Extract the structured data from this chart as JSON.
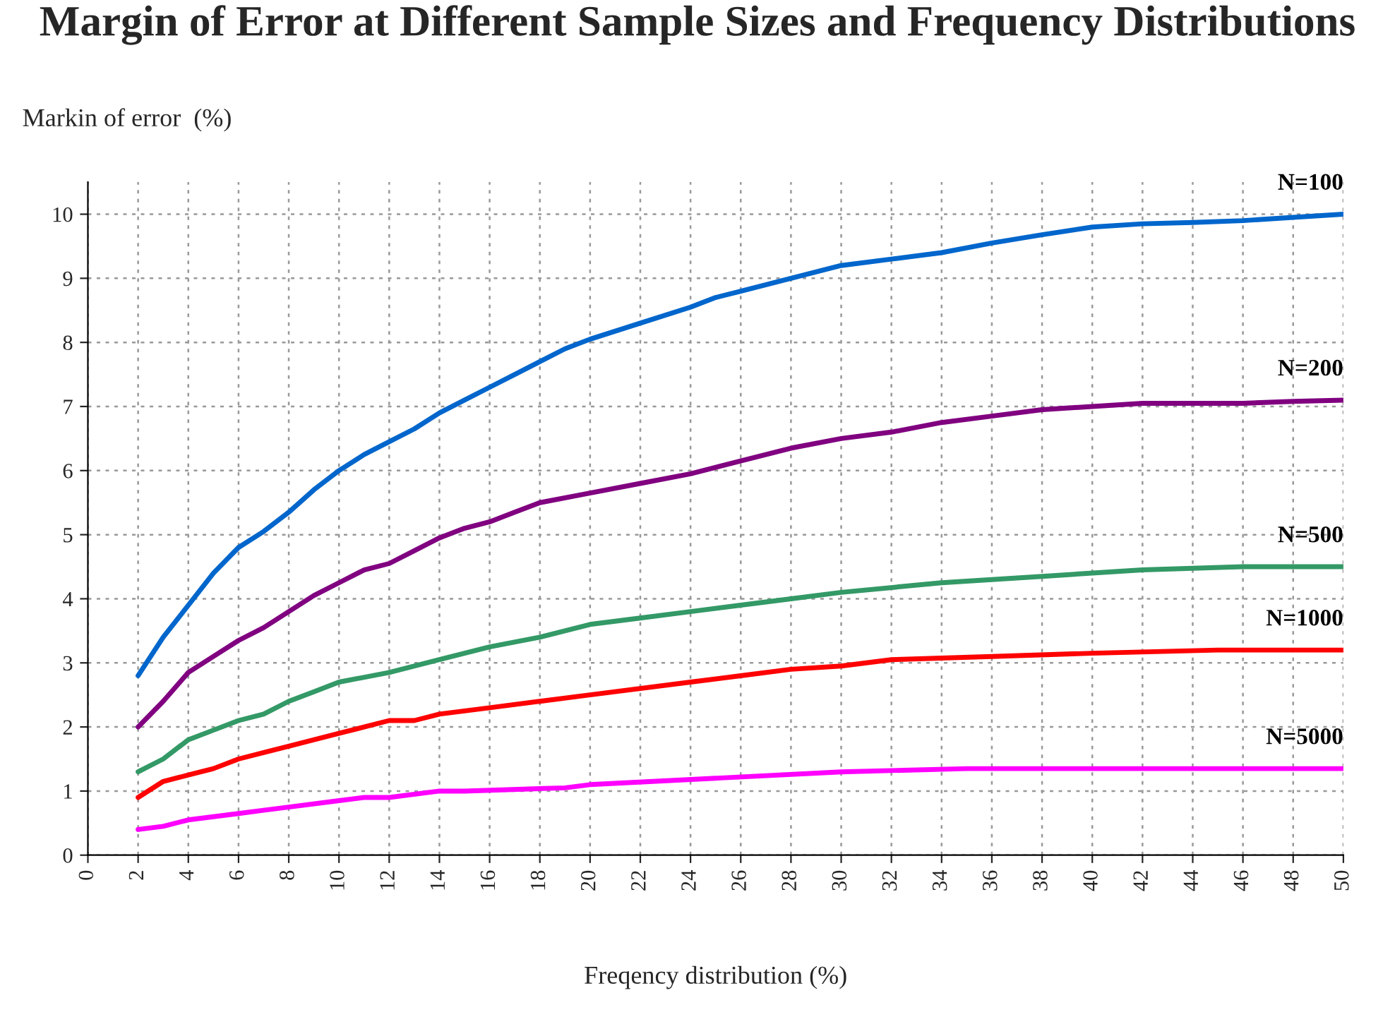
{
  "chart_data": {
    "type": "line",
    "title": "Margin of Error at Different Sample Sizes and Frequency Distributions",
    "ylabel": "Markin of error  (%)",
    "xlabel": "Freqency distribution (%)",
    "xlim": [
      0,
      50
    ],
    "xticks": [
      0,
      2,
      4,
      6,
      8,
      10,
      12,
      14,
      16,
      18,
      20,
      22,
      24,
      26,
      28,
      30,
      32,
      34,
      36,
      38,
      40,
      42,
      44,
      46,
      48,
      50
    ],
    "ylim": [
      0,
      10.5
    ],
    "yticks": [
      0,
      1,
      2,
      3,
      4,
      5,
      6,
      7,
      8,
      9,
      10
    ],
    "grid": true,
    "legend": false,
    "marker": "none",
    "line_style": "solid",
    "series": [
      {
        "name": "N=100",
        "color": "#0066cc",
        "x": [
          2,
          3,
          4,
          5,
          6,
          7,
          8,
          9,
          10,
          11,
          12,
          13,
          14,
          15,
          16,
          17,
          18,
          19,
          20,
          22,
          24,
          25,
          26,
          28,
          30,
          32,
          34,
          36,
          38,
          40,
          42,
          44,
          46,
          48,
          50
        ],
        "values": [
          2.8,
          3.4,
          3.9,
          4.4,
          4.8,
          5.05,
          5.35,
          5.7,
          6.0,
          6.25,
          6.45,
          6.65,
          6.9,
          7.1,
          7.3,
          7.5,
          7.7,
          7.9,
          8.05,
          8.3,
          8.55,
          8.7,
          8.8,
          9.0,
          9.2,
          9.3,
          9.4,
          9.55,
          9.68,
          9.8,
          9.85,
          9.87,
          9.9,
          9.95,
          10.0
        ]
      },
      {
        "name": "N=200",
        "color": "#800080",
        "x": [
          2,
          3,
          4,
          5,
          6,
          7,
          8,
          9,
          10,
          11,
          12,
          13,
          14,
          15,
          16,
          17,
          18,
          20,
          22,
          24,
          26,
          28,
          30,
          32,
          34,
          36,
          38,
          40,
          42,
          44,
          46,
          48,
          50
        ],
        "values": [
          2.0,
          2.4,
          2.85,
          3.1,
          3.35,
          3.55,
          3.8,
          4.05,
          4.25,
          4.45,
          4.55,
          4.75,
          4.95,
          5.1,
          5.2,
          5.35,
          5.5,
          5.65,
          5.8,
          5.95,
          6.15,
          6.35,
          6.5,
          6.6,
          6.75,
          6.85,
          6.95,
          7.0,
          7.05,
          7.05,
          7.05,
          7.08,
          7.1
        ]
      },
      {
        "name": "N=500",
        "color": "#339966",
        "x": [
          2,
          3,
          4,
          5,
          6,
          7,
          8,
          9,
          10,
          12,
          14,
          16,
          18,
          20,
          22,
          24,
          26,
          28,
          30,
          34,
          38,
          42,
          46,
          50
        ],
        "values": [
          1.3,
          1.5,
          1.8,
          1.95,
          2.1,
          2.2,
          2.4,
          2.55,
          2.7,
          2.85,
          3.05,
          3.25,
          3.4,
          3.6,
          3.7,
          3.8,
          3.9,
          4.0,
          4.1,
          4.25,
          4.35,
          4.45,
          4.5,
          4.5
        ]
      },
      {
        "name": "N=1000",
        "color": "#ff0000",
        "x": [
          2,
          3,
          4,
          5,
          6,
          7,
          8,
          10,
          11,
          12,
          13,
          14,
          16,
          18,
          20,
          24,
          26,
          28,
          30,
          32,
          36,
          40,
          45,
          50
        ],
        "values": [
          0.9,
          1.15,
          1.25,
          1.35,
          1.5,
          1.6,
          1.7,
          1.9,
          2.0,
          2.1,
          2.1,
          2.2,
          2.3,
          2.4,
          2.5,
          2.7,
          2.8,
          2.9,
          2.95,
          3.05,
          3.1,
          3.15,
          3.2,
          3.2
        ]
      },
      {
        "name": "N=5000",
        "color": "#ff00ff",
        "x": [
          2,
          3,
          4,
          5,
          6,
          7,
          8,
          10,
          11,
          12,
          14,
          15,
          19,
          20,
          25,
          30,
          35,
          40,
          50
        ],
        "values": [
          0.4,
          0.45,
          0.55,
          0.6,
          0.65,
          0.7,
          0.75,
          0.85,
          0.9,
          0.9,
          1.0,
          1.0,
          1.05,
          1.1,
          1.2,
          1.3,
          1.35,
          1.35,
          1.35
        ]
      }
    ]
  }
}
